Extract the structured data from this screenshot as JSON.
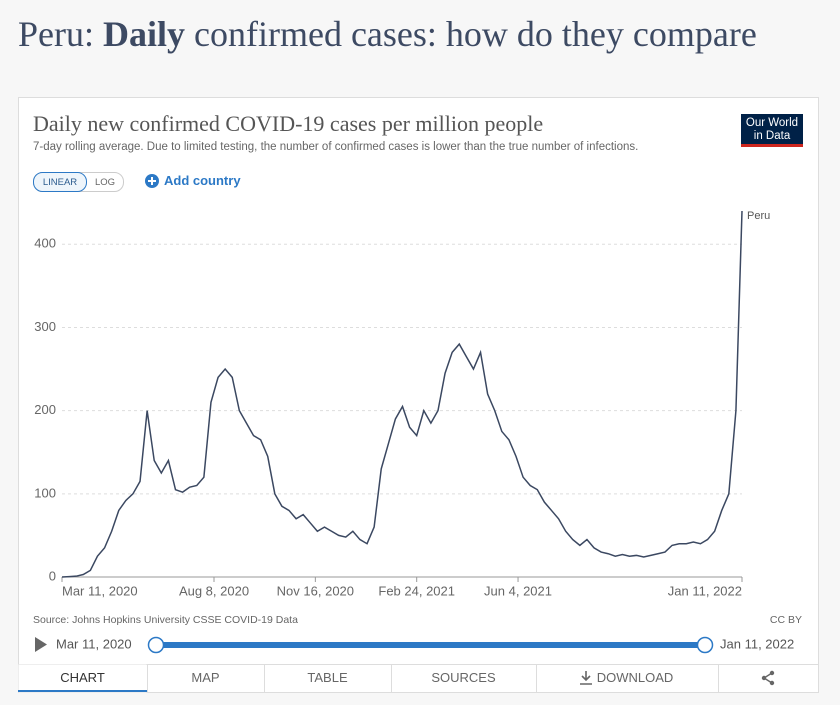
{
  "heading": [
    "Peru: ",
    "Daily",
    " confirmed cases: how do they compare"
  ],
  "logo": [
    "Our World",
    "in Data"
  ],
  "controls": {
    "linear": "LINEAR",
    "log": "LOG",
    "add": "Add country"
  },
  "footer": {
    "source": "Source: Johns Hopkins University CSSE COVID-19 Data",
    "license": "CC BY"
  },
  "timeline": {
    "start": "Mar 11, 2020",
    "end": "Jan 11, 2022"
  },
  "tabs": [
    "CHART",
    "MAP",
    "TABLE",
    "SOURCES",
    "DOWNLOAD"
  ],
  "chart_data": {
    "type": "line",
    "title": "Daily new confirmed COVID-19 cases per million people",
    "subtitle": "7-day rolling average. Due to limited testing, the number of confirmed cases is lower than the true number of infections.",
    "x": [
      "2020-03-11",
      "2020-03-18",
      "2020-03-25",
      "2020-04-01",
      "2020-04-08",
      "2020-04-15",
      "2020-04-22",
      "2020-04-29",
      "2020-05-06",
      "2020-05-13",
      "2020-05-20",
      "2020-05-27",
      "2020-06-03",
      "2020-06-10",
      "2020-06-17",
      "2020-06-24",
      "2020-07-01",
      "2020-07-08",
      "2020-07-15",
      "2020-07-22",
      "2020-07-29",
      "2020-08-05",
      "2020-08-12",
      "2020-08-19",
      "2020-08-26",
      "2020-09-02",
      "2020-09-09",
      "2020-09-16",
      "2020-09-23",
      "2020-09-30",
      "2020-10-07",
      "2020-10-14",
      "2020-10-21",
      "2020-10-28",
      "2020-11-04",
      "2020-11-11",
      "2020-11-18",
      "2020-11-25",
      "2020-12-02",
      "2020-12-09",
      "2020-12-16",
      "2020-12-23",
      "2020-12-30",
      "2021-01-06",
      "2021-01-13",
      "2021-01-20",
      "2021-01-27",
      "2021-02-03",
      "2021-02-10",
      "2021-02-17",
      "2021-02-24",
      "2021-03-03",
      "2021-03-10",
      "2021-03-17",
      "2021-03-24",
      "2021-03-31",
      "2021-04-07",
      "2021-04-14",
      "2021-04-21",
      "2021-04-28",
      "2021-05-05",
      "2021-05-12",
      "2021-05-19",
      "2021-05-26",
      "2021-06-02",
      "2021-06-09",
      "2021-06-16",
      "2021-06-23",
      "2021-06-30",
      "2021-07-07",
      "2021-07-14",
      "2021-07-21",
      "2021-07-28",
      "2021-08-04",
      "2021-08-11",
      "2021-08-18",
      "2021-08-25",
      "2021-09-01",
      "2021-09-08",
      "2021-09-15",
      "2021-09-22",
      "2021-09-29",
      "2021-10-06",
      "2021-10-13",
      "2021-10-20",
      "2021-10-27",
      "2021-11-03",
      "2021-11-10",
      "2021-11-17",
      "2021-11-24",
      "2021-12-01",
      "2021-12-08",
      "2021-12-15",
      "2021-12-22",
      "2021-12-29",
      "2022-01-05",
      "2022-01-11"
    ],
    "series": [
      {
        "name": "Peru",
        "color": "#3b4861",
        "values": [
          0,
          0.5,
          1,
          3,
          8,
          25,
          35,
          55,
          80,
          92,
          100,
          115,
          200,
          140,
          125,
          140,
          105,
          102,
          108,
          110,
          120,
          210,
          240,
          250,
          240,
          200,
          185,
          170,
          165,
          145,
          100,
          85,
          80,
          70,
          75,
          65,
          55,
          60,
          55,
          50,
          48,
          55,
          45,
          40,
          60,
          130,
          160,
          190,
          205,
          180,
          170,
          200,
          185,
          200,
          245,
          270,
          280,
          265,
          250,
          270,
          220,
          200,
          175,
          165,
          145,
          120,
          110,
          105,
          90,
          80,
          70,
          55,
          45,
          38,
          45,
          35,
          30,
          28,
          25,
          27,
          25,
          26,
          24,
          26,
          28,
          30,
          38,
          40,
          40,
          42,
          40,
          45,
          55,
          80,
          100,
          200,
          440
        ]
      }
    ],
    "xlim": [
      "2020-03-11",
      "2022-01-11"
    ],
    "xticks": [
      {
        "value": "2020-03-11",
        "label": "Mar 11, 2020"
      },
      {
        "value": "2020-08-08",
        "label": "Aug 8, 2020"
      },
      {
        "value": "2020-11-16",
        "label": "Nov 16, 2020"
      },
      {
        "value": "2021-02-24",
        "label": "Feb 24, 2021"
      },
      {
        "value": "2021-06-04",
        "label": "Jun 4, 2021"
      },
      {
        "value": "2022-01-11",
        "label": "Jan 11, 2022"
      }
    ],
    "ylim": [
      0,
      440
    ],
    "yticks": [
      0,
      100,
      200,
      300,
      400
    ],
    "grid": true
  }
}
